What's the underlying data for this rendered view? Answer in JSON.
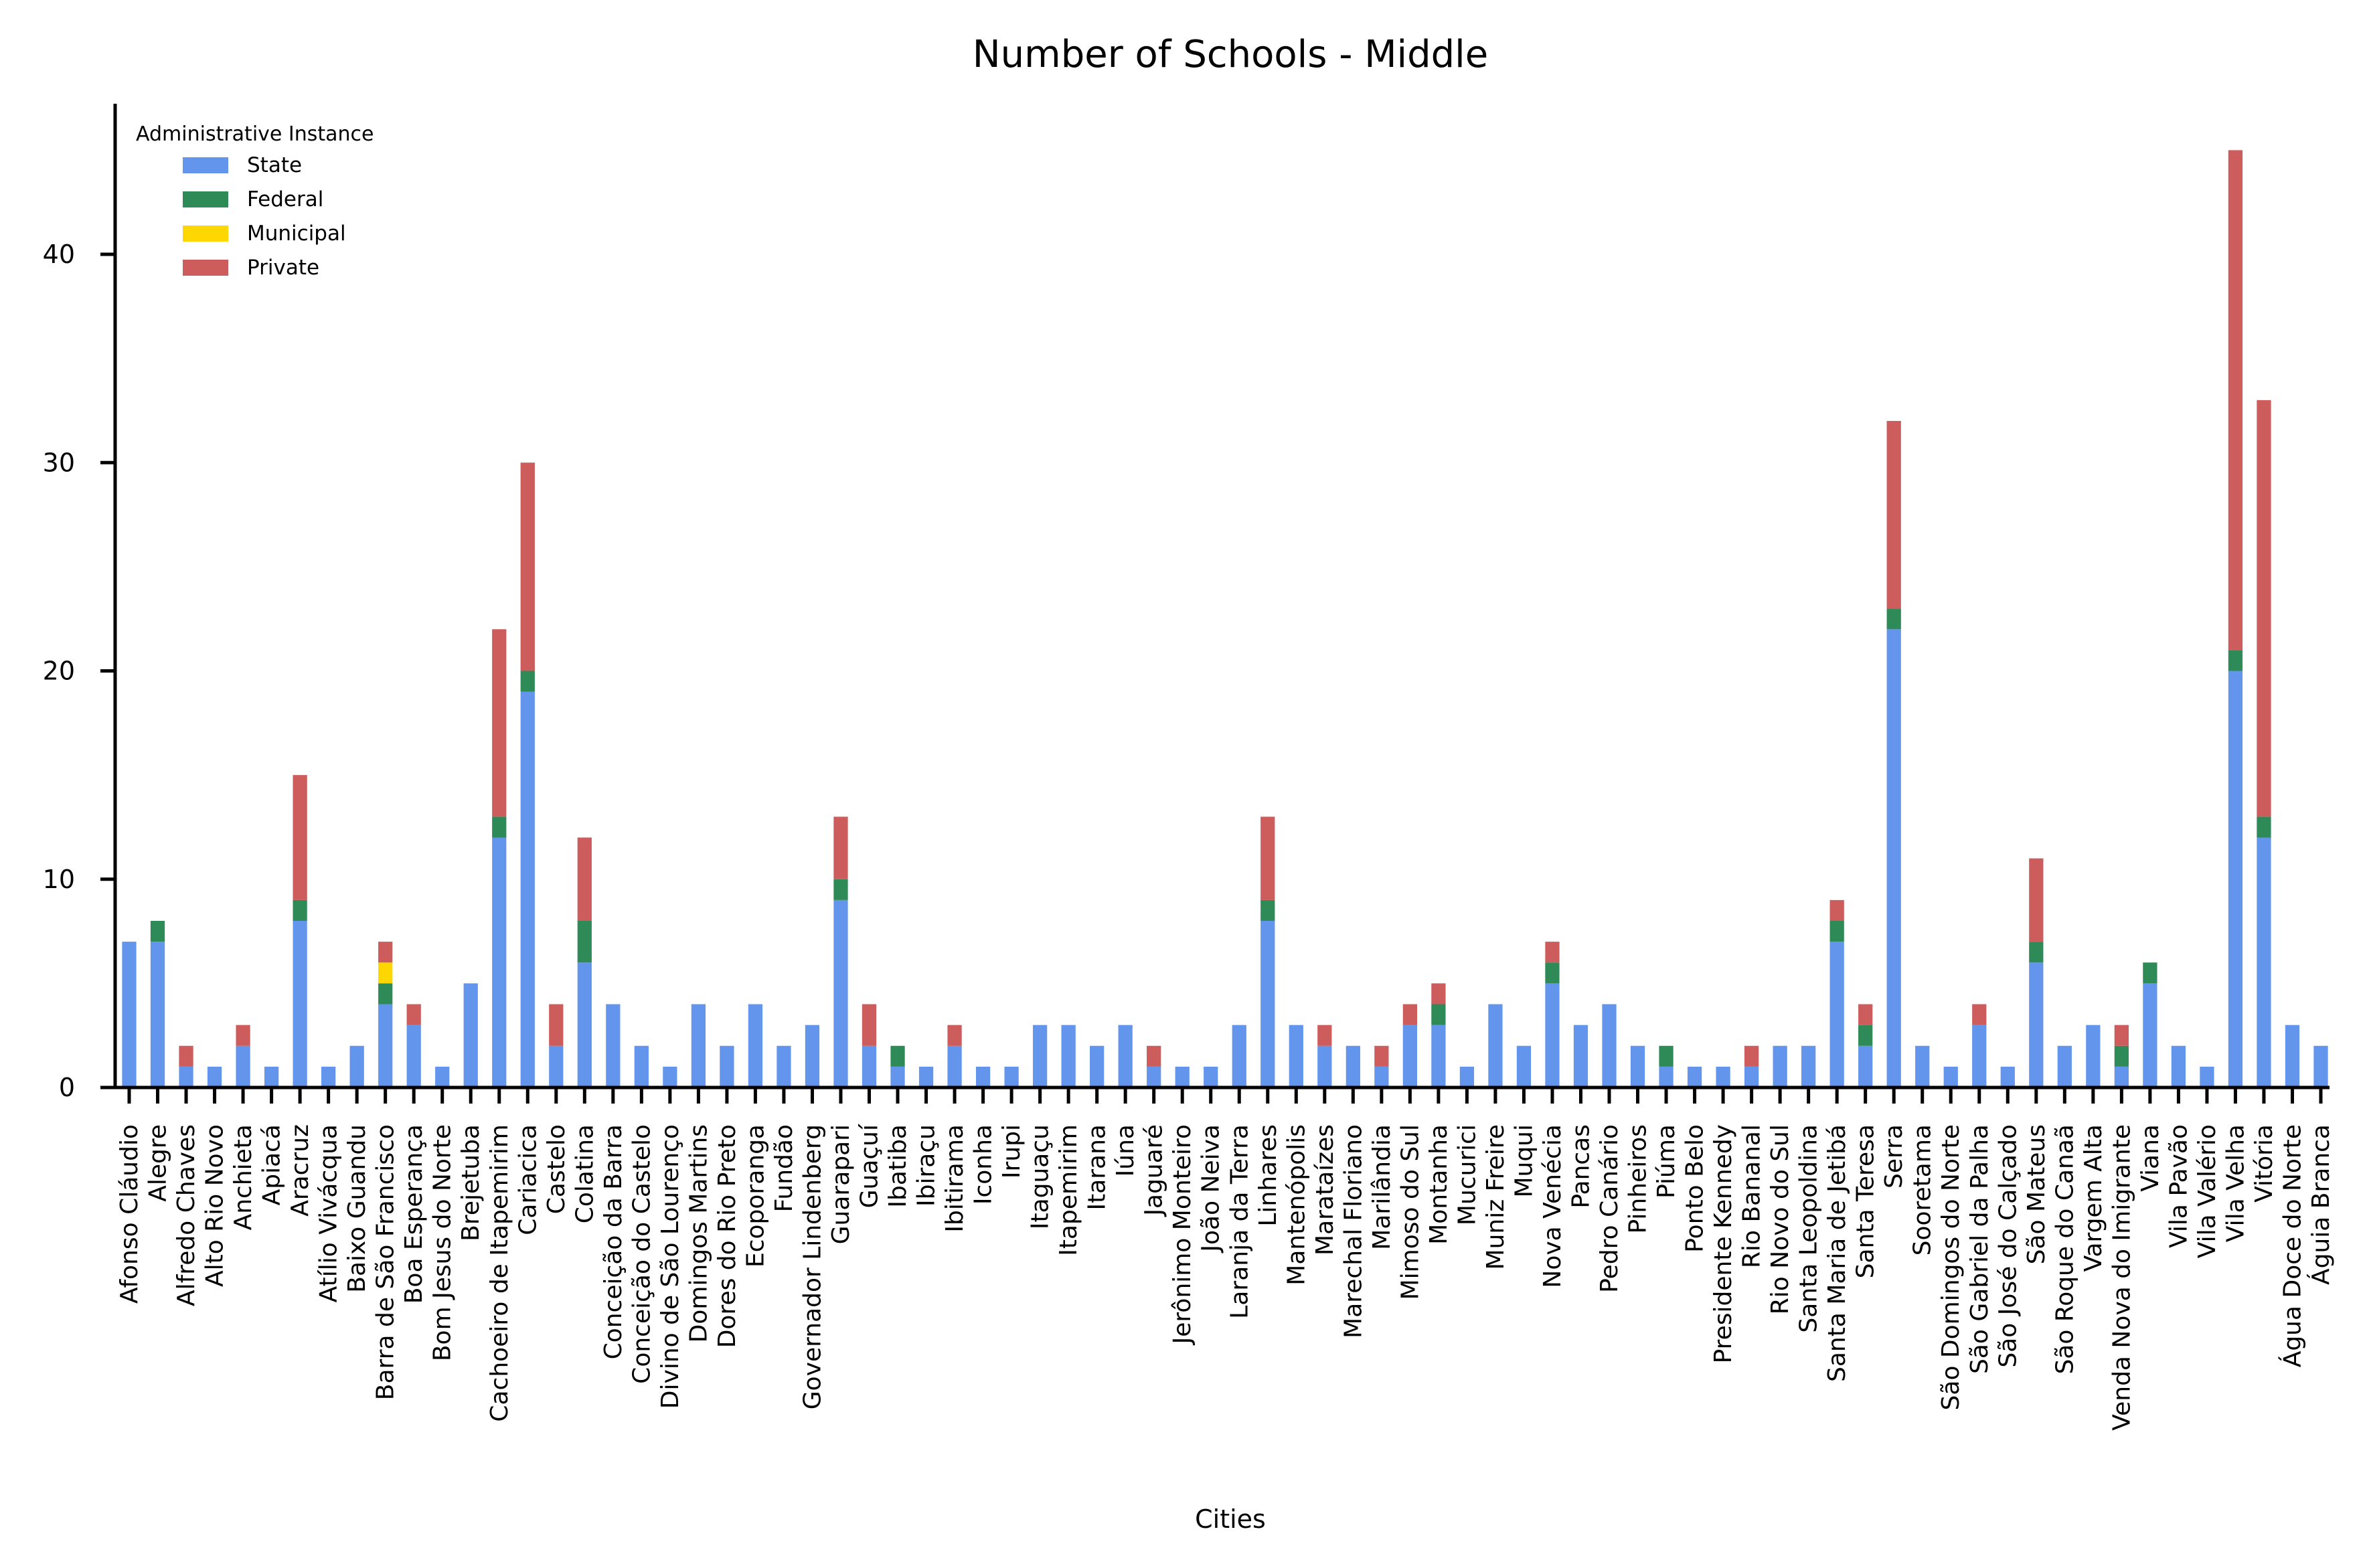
{
  "chart_data": {
    "type": "bar",
    "stacked": true,
    "title": "Number of Schools  - Middle",
    "xlabel": "Cities",
    "ylabel": "",
    "ylim": [
      0,
      47
    ],
    "yticks": [
      0,
      10,
      20,
      30,
      40
    ],
    "grid": false,
    "legend": {
      "title": "Administrative Instance",
      "placement": "top-left"
    },
    "categories": [
      "Afonso Cláudio",
      "Alegre",
      "Alfredo Chaves",
      "Alto Rio Novo",
      "Anchieta",
      "Apiacá",
      "Aracruz",
      "Atílio Vivácqua",
      "Baixo Guandu",
      "Barra de São Francisco",
      "Boa Esperança",
      "Bom Jesus do Norte",
      "Brejetuba",
      "Cachoeiro de Itapemirim",
      "Cariacica",
      "Castelo",
      "Colatina",
      "Conceição da Barra",
      "Conceição do Castelo",
      "Divino de São Lourenço",
      "Domingos Martins",
      "Dores do Rio Preto",
      "Ecoporanga",
      "Fundão",
      "Governador Lindenberg",
      "Guarapari",
      "Guaçuí",
      "Ibatiba",
      "Ibiraçu",
      "Ibitirama",
      "Iconha",
      "Irupi",
      "Itaguaçu",
      "Itapemirim",
      "Itarana",
      "Iúna",
      "Jaguaré",
      "Jerônimo Monteiro",
      "João Neiva",
      "Laranja da Terra",
      "Linhares",
      "Mantenópolis",
      "Marataízes",
      "Marechal Floriano",
      "Marilândia",
      "Mimoso do Sul",
      "Montanha",
      "Mucurici",
      "Muniz Freire",
      "Muqui",
      "Nova Venécia",
      "Pancas",
      "Pedro Canário",
      "Pinheiros",
      "Piúma",
      "Ponto Belo",
      "Presidente Kennedy",
      "Rio Bananal",
      "Rio Novo do Sul",
      "Santa Leopoldina",
      "Santa Maria de Jetibá",
      "Santa Teresa",
      "Serra",
      "Sooretama",
      "São Domingos do Norte",
      "São Gabriel da Palha",
      "São José do Calçado",
      "São Mateus",
      "São Roque do Canaã",
      "Vargem Alta",
      "Venda Nova do Imigrante",
      "Viana",
      "Vila Pavão",
      "Vila Valério",
      "Vila Velha",
      "Vitória",
      "Água Doce do Norte",
      "Águia Branca"
    ],
    "series": [
      {
        "name": "State",
        "color": "#6495ed",
        "values": [
          7,
          7,
          1,
          1,
          2,
          1,
          8,
          1,
          2,
          4,
          3,
          1,
          5,
          12,
          19,
          2,
          6,
          4,
          2,
          1,
          4,
          2,
          4,
          2,
          3,
          9,
          2,
          1,
          1,
          2,
          1,
          1,
          3,
          3,
          2,
          3,
          1,
          1,
          1,
          3,
          8,
          3,
          2,
          2,
          1,
          3,
          3,
          1,
          4,
          2,
          5,
          3,
          4,
          2,
          1,
          1,
          1,
          1,
          2,
          2,
          7,
          2,
          22,
          2,
          1,
          3,
          1,
          6,
          2,
          3,
          1,
          5,
          2,
          1,
          20,
          12,
          3,
          2
        ]
      },
      {
        "name": "Federal",
        "color": "#2e8b57",
        "values": [
          0,
          1,
          0,
          0,
          0,
          0,
          1,
          0,
          0,
          1,
          0,
          0,
          0,
          1,
          1,
          0,
          2,
          0,
          0,
          0,
          0,
          0,
          0,
          0,
          0,
          1,
          0,
          1,
          0,
          0,
          0,
          0,
          0,
          0,
          0,
          0,
          0,
          0,
          0,
          0,
          1,
          0,
          0,
          0,
          0,
          0,
          1,
          0,
          0,
          0,
          1,
          0,
          0,
          0,
          1,
          0,
          0,
          0,
          0,
          0,
          1,
          1,
          1,
          0,
          0,
          0,
          0,
          1,
          0,
          0,
          1,
          1,
          0,
          0,
          1,
          1,
          0,
          0
        ]
      },
      {
        "name": "Municipal",
        "color": "#ffd700",
        "values": [
          0,
          0,
          0,
          0,
          0,
          0,
          0,
          0,
          0,
          1,
          0,
          0,
          0,
          0,
          0,
          0,
          0,
          0,
          0,
          0,
          0,
          0,
          0,
          0,
          0,
          0,
          0,
          0,
          0,
          0,
          0,
          0,
          0,
          0,
          0,
          0,
          0,
          0,
          0,
          0,
          0,
          0,
          0,
          0,
          0,
          0,
          0,
          0,
          0,
          0,
          0,
          0,
          0,
          0,
          0,
          0,
          0,
          0,
          0,
          0,
          0,
          0,
          0,
          0,
          0,
          0,
          0,
          0,
          0,
          0,
          0,
          0,
          0,
          0,
          0,
          0,
          0,
          0
        ]
      },
      {
        "name": "Private",
        "color": "#cd5c5c",
        "values": [
          0,
          0,
          1,
          0,
          1,
          0,
          6,
          0,
          0,
          1,
          1,
          0,
          0,
          9,
          10,
          2,
          4,
          0,
          0,
          0,
          0,
          0,
          0,
          0,
          0,
          3,
          2,
          0,
          0,
          1,
          0,
          0,
          0,
          0,
          0,
          0,
          1,
          0,
          0,
          0,
          4,
          0,
          1,
          0,
          1,
          1,
          1,
          0,
          0,
          0,
          1,
          0,
          0,
          0,
          0,
          0,
          0,
          1,
          0,
          0,
          1,
          1,
          9,
          0,
          0,
          1,
          0,
          4,
          0,
          0,
          1,
          0,
          0,
          0,
          24,
          20,
          0,
          0
        ]
      }
    ]
  }
}
